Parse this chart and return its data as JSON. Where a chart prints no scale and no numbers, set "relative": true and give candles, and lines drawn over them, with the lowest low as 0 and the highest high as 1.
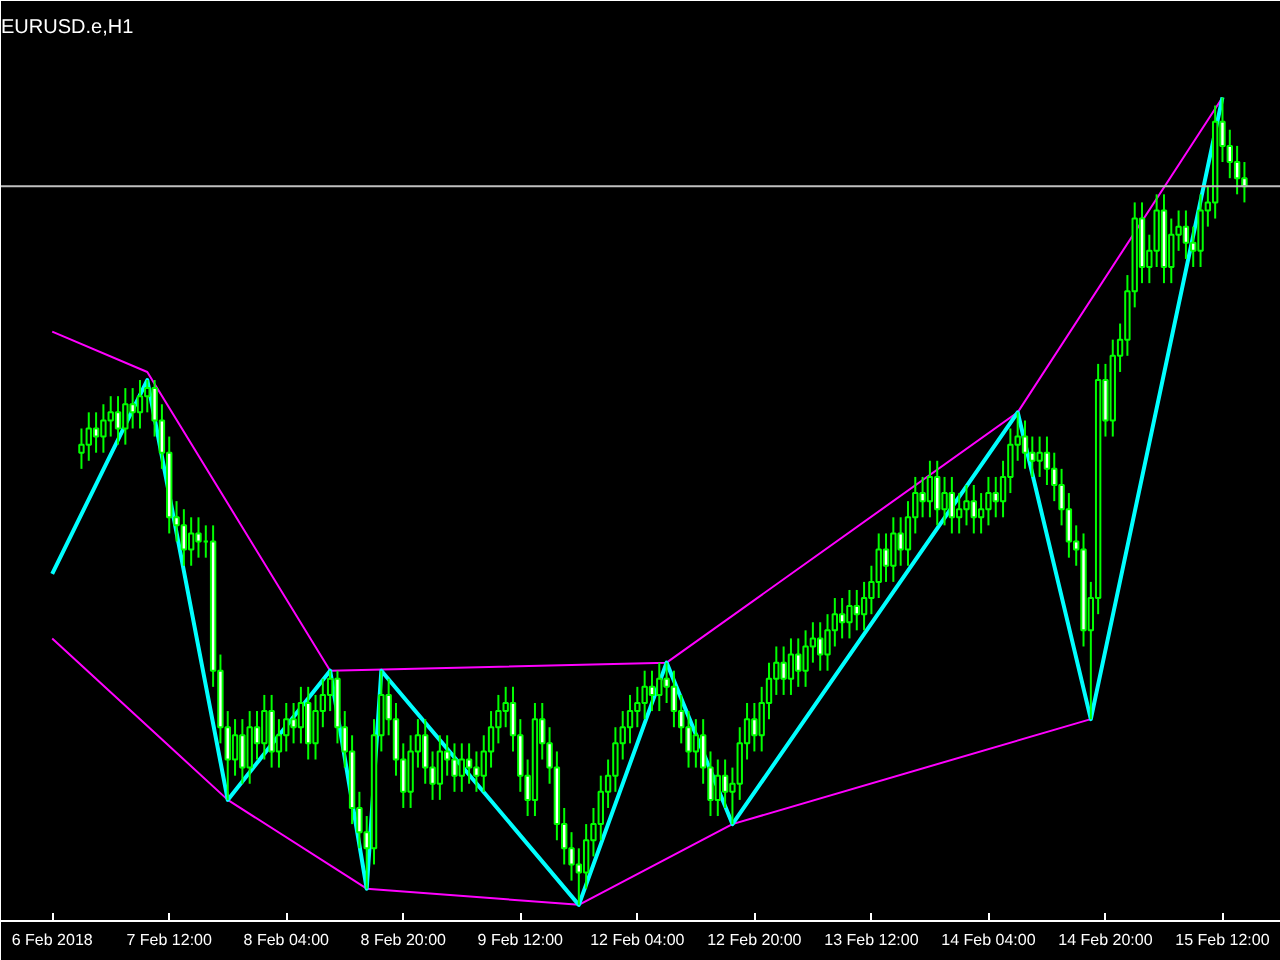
{
  "chart_data": {
    "type": "candlestick",
    "title": "EURUSD.e,H1",
    "relative": true,
    "color": "#00ff00",
    "categories": [
      "6 Feb 2018",
      null,
      null,
      null,
      null,
      null,
      null,
      null,
      null,
      null,
      null,
      null,
      null,
      null,
      null,
      null,
      "7 Feb 12:00",
      null,
      null,
      null,
      null,
      null,
      null,
      null,
      null,
      null,
      null,
      null,
      null,
      null,
      null,
      null,
      "8 Feb 04:00",
      null,
      null,
      null,
      null,
      null,
      null,
      null,
      null,
      null,
      null,
      null,
      null,
      null,
      null,
      null,
      "8 Feb 20:00",
      null,
      null,
      null,
      null,
      null,
      null,
      null,
      null,
      null,
      null,
      null,
      null,
      null,
      null,
      null,
      "9 Feb 12:00",
      null,
      null,
      null,
      null,
      null,
      null,
      null,
      null,
      null,
      null,
      null,
      null,
      null,
      null,
      null,
      "12 Feb 04:00",
      null,
      null,
      null,
      null,
      null,
      null,
      null,
      null,
      null,
      null,
      null,
      null,
      null,
      null,
      null,
      "12 Feb 20:00",
      null,
      null,
      null,
      null,
      null,
      null,
      null,
      null,
      null,
      null,
      null,
      null,
      null,
      null,
      null,
      "13 Feb 12:00",
      null,
      null,
      null,
      null,
      null,
      null,
      null,
      null,
      null,
      null,
      null,
      null,
      null,
      null,
      null,
      "14 Feb 04:00",
      null,
      null,
      null,
      null,
      null,
      null,
      null,
      null,
      null,
      null,
      null,
      null,
      null,
      null,
      null,
      "14 Feb 20:00",
      null,
      null,
      null,
      null,
      null,
      null,
      null,
      null,
      null,
      null,
      null,
      null,
      null,
      null,
      null,
      "15 Feb 12:00",
      null,
      null,
      null
    ],
    "ohlc": [
      null,
      null,
      null,
      null,
      [
        0.56,
        0.59,
        0.54,
        0.57
      ],
      [
        0.57,
        0.61,
        0.55,
        0.59
      ],
      [
        0.59,
        0.61,
        0.56,
        0.58
      ],
      [
        0.58,
        0.62,
        0.56,
        0.6
      ],
      [
        0.6,
        0.63,
        0.58,
        0.61
      ],
      [
        0.61,
        0.63,
        0.57,
        0.59
      ],
      [
        0.59,
        0.64,
        0.57,
        0.62
      ],
      [
        0.62,
        0.64,
        0.59,
        0.61
      ],
      [
        0.61,
        0.65,
        0.59,
        0.63
      ],
      [
        0.63,
        0.65,
        0.61,
        0.64
      ],
      [
        0.64,
        0.65,
        0.58,
        0.6
      ],
      [
        0.6,
        0.62,
        0.54,
        0.56
      ],
      [
        0.56,
        0.58,
        0.46,
        0.48
      ],
      [
        0.48,
        0.5,
        0.45,
        0.47
      ],
      [
        0.47,
        0.49,
        0.42,
        0.44
      ],
      [
        0.44,
        0.48,
        0.42,
        0.46
      ],
      [
        0.46,
        0.48,
        0.43,
        0.45
      ],
      [
        0.45,
        0.47,
        0.43,
        0.45
      ],
      [
        0.45,
        0.47,
        0.27,
        0.29
      ],
      [
        0.29,
        0.31,
        0.2,
        0.22
      ],
      [
        0.22,
        0.24,
        0.13,
        0.18
      ],
      [
        0.18,
        0.23,
        0.16,
        0.21
      ],
      [
        0.21,
        0.23,
        0.15,
        0.17
      ],
      [
        0.17,
        0.24,
        0.15,
        0.22
      ],
      [
        0.22,
        0.24,
        0.18,
        0.2
      ],
      [
        0.2,
        0.26,
        0.18,
        0.24
      ],
      [
        0.24,
        0.26,
        0.17,
        0.19
      ],
      [
        0.19,
        0.23,
        0.17,
        0.21
      ],
      [
        0.21,
        0.25,
        0.19,
        0.23
      ],
      [
        0.23,
        0.25,
        0.2,
        0.22
      ],
      [
        0.22,
        0.27,
        0.2,
        0.25
      ],
      [
        0.25,
        0.27,
        0.18,
        0.2
      ],
      [
        0.2,
        0.26,
        0.18,
        0.24
      ],
      [
        0.24,
        0.28,
        0.22,
        0.26
      ],
      [
        0.26,
        0.29,
        0.24,
        0.28
      ],
      [
        0.28,
        0.29,
        0.2,
        0.22
      ],
      [
        0.22,
        0.24,
        0.17,
        0.19
      ],
      [
        0.19,
        0.21,
        0.1,
        0.12
      ],
      [
        0.12,
        0.14,
        0.07,
        0.09
      ],
      [
        0.09,
        0.11,
        0.02,
        0.07
      ],
      [
        0.07,
        0.23,
        0.05,
        0.21
      ],
      [
        0.21,
        0.29,
        0.19,
        0.26
      ],
      [
        0.26,
        0.28,
        0.21,
        0.23
      ],
      [
        0.23,
        0.25,
        0.16,
        0.18
      ],
      [
        0.18,
        0.2,
        0.12,
        0.14
      ],
      [
        0.14,
        0.21,
        0.12,
        0.19
      ],
      [
        0.19,
        0.23,
        0.17,
        0.21
      ],
      [
        0.21,
        0.23,
        0.15,
        0.17
      ],
      [
        0.17,
        0.19,
        0.13,
        0.15
      ],
      [
        0.15,
        0.21,
        0.13,
        0.19
      ],
      [
        0.19,
        0.21,
        0.16,
        0.18
      ],
      [
        0.18,
        0.2,
        0.14,
        0.16
      ],
      [
        0.16,
        0.2,
        0.14,
        0.18
      ],
      [
        0.18,
        0.2,
        0.15,
        0.17
      ],
      [
        0.17,
        0.19,
        0.14,
        0.16
      ],
      [
        0.16,
        0.21,
        0.14,
        0.19
      ],
      [
        0.19,
        0.24,
        0.17,
        0.22
      ],
      [
        0.22,
        0.26,
        0.2,
        0.24
      ],
      [
        0.24,
        0.27,
        0.22,
        0.25
      ],
      [
        0.25,
        0.27,
        0.19,
        0.21
      ],
      [
        0.21,
        0.23,
        0.14,
        0.16
      ],
      [
        0.16,
        0.18,
        0.11,
        0.13
      ],
      [
        0.13,
        0.25,
        0.11,
        0.23
      ],
      [
        0.23,
        0.25,
        0.18,
        0.2
      ],
      [
        0.2,
        0.22,
        0.15,
        0.17
      ],
      [
        0.17,
        0.19,
        0.08,
        0.1
      ],
      [
        0.1,
        0.12,
        0.05,
        0.07
      ],
      [
        0.07,
        0.09,
        0.03,
        0.05
      ],
      [
        0.05,
        0.07,
        0.0,
        0.04
      ],
      [
        0.04,
        0.1,
        0.02,
        0.08
      ],
      [
        0.08,
        0.12,
        0.06,
        0.1
      ],
      [
        0.1,
        0.16,
        0.08,
        0.14
      ],
      [
        0.14,
        0.18,
        0.12,
        0.16
      ],
      [
        0.16,
        0.22,
        0.14,
        0.2
      ],
      [
        0.2,
        0.24,
        0.18,
        0.22
      ],
      [
        0.22,
        0.26,
        0.2,
        0.24
      ],
      [
        0.24,
        0.27,
        0.22,
        0.25
      ],
      [
        0.25,
        0.29,
        0.23,
        0.27
      ],
      [
        0.27,
        0.29,
        0.24,
        0.26
      ],
      [
        0.26,
        0.3,
        0.24,
        0.28
      ],
      [
        0.28,
        0.3,
        0.25,
        0.27
      ],
      [
        0.27,
        0.29,
        0.22,
        0.24
      ],
      [
        0.24,
        0.26,
        0.2,
        0.22
      ],
      [
        0.22,
        0.24,
        0.17,
        0.19
      ],
      [
        0.19,
        0.23,
        0.17,
        0.21
      ],
      [
        0.21,
        0.23,
        0.15,
        0.17
      ],
      [
        0.17,
        0.19,
        0.11,
        0.13
      ],
      [
        0.13,
        0.18,
        0.11,
        0.16
      ],
      [
        0.16,
        0.18,
        0.12,
        0.14
      ],
      [
        0.14,
        0.17,
        0.1,
        0.15
      ],
      [
        0.15,
        0.22,
        0.13,
        0.2
      ],
      [
        0.2,
        0.25,
        0.18,
        0.23
      ],
      [
        0.23,
        0.25,
        0.19,
        0.21
      ],
      [
        0.21,
        0.27,
        0.19,
        0.25
      ],
      [
        0.25,
        0.3,
        0.23,
        0.28
      ],
      [
        0.28,
        0.32,
        0.26,
        0.3
      ],
      [
        0.3,
        0.32,
        0.26,
        0.28
      ],
      [
        0.28,
        0.33,
        0.26,
        0.31
      ],
      [
        0.31,
        0.33,
        0.27,
        0.29
      ],
      [
        0.29,
        0.34,
        0.27,
        0.32
      ],
      [
        0.32,
        0.35,
        0.3,
        0.33
      ],
      [
        0.33,
        0.35,
        0.29,
        0.31
      ],
      [
        0.31,
        0.36,
        0.29,
        0.34
      ],
      [
        0.34,
        0.38,
        0.32,
        0.36
      ],
      [
        0.36,
        0.38,
        0.33,
        0.35
      ],
      [
        0.35,
        0.39,
        0.33,
        0.37
      ],
      [
        0.37,
        0.39,
        0.34,
        0.36
      ],
      [
        0.36,
        0.4,
        0.34,
        0.38
      ],
      [
        0.38,
        0.42,
        0.36,
        0.4
      ],
      [
        0.4,
        0.46,
        0.38,
        0.44
      ],
      [
        0.44,
        0.46,
        0.4,
        0.42
      ],
      [
        0.42,
        0.48,
        0.4,
        0.46
      ],
      [
        0.46,
        0.48,
        0.42,
        0.44
      ],
      [
        0.44,
        0.5,
        0.42,
        0.48
      ],
      [
        0.48,
        0.53,
        0.46,
        0.51
      ],
      [
        0.51,
        0.53,
        0.48,
        0.5
      ],
      [
        0.5,
        0.55,
        0.48,
        0.53
      ],
      [
        0.53,
        0.55,
        0.47,
        0.49
      ],
      [
        0.49,
        0.53,
        0.47,
        0.51
      ],
      [
        0.51,
        0.53,
        0.46,
        0.48
      ],
      [
        0.48,
        0.51,
        0.46,
        0.49
      ],
      [
        0.49,
        0.52,
        0.47,
        0.5
      ],
      [
        0.5,
        0.52,
        0.46,
        0.48
      ],
      [
        0.48,
        0.51,
        0.46,
        0.49
      ],
      [
        0.49,
        0.53,
        0.47,
        0.51
      ],
      [
        0.51,
        0.53,
        0.48,
        0.5
      ],
      [
        0.5,
        0.55,
        0.48,
        0.53
      ],
      [
        0.53,
        0.59,
        0.51,
        0.57
      ],
      [
        0.57,
        0.61,
        0.55,
        0.58
      ],
      [
        0.58,
        0.6,
        0.54,
        0.56
      ],
      [
        0.56,
        0.58,
        0.53,
        0.55
      ],
      [
        0.55,
        0.58,
        0.53,
        0.56
      ],
      [
        0.56,
        0.58,
        0.52,
        0.54
      ],
      [
        0.54,
        0.56,
        0.5,
        0.52
      ],
      [
        0.52,
        0.54,
        0.47,
        0.49
      ],
      [
        0.49,
        0.51,
        0.43,
        0.45
      ],
      [
        0.45,
        0.47,
        0.42,
        0.44
      ],
      [
        0.44,
        0.46,
        0.32,
        0.34
      ],
      [
        0.34,
        0.4,
        0.23,
        0.38
      ],
      [
        0.38,
        0.67,
        0.36,
        0.65
      ],
      [
        0.65,
        0.67,
        0.58,
        0.6
      ],
      [
        0.6,
        0.7,
        0.58,
        0.68
      ],
      [
        0.68,
        0.72,
        0.66,
        0.7
      ],
      [
        0.7,
        0.78,
        0.68,
        0.76
      ],
      [
        0.76,
        0.87,
        0.74,
        0.85
      ],
      [
        0.85,
        0.87,
        0.77,
        0.79
      ],
      [
        0.79,
        0.83,
        0.77,
        0.81
      ],
      [
        0.81,
        0.88,
        0.79,
        0.86
      ],
      [
        0.86,
        0.88,
        0.77,
        0.79
      ],
      [
        0.79,
        0.85,
        0.77,
        0.83
      ],
      [
        0.83,
        0.86,
        0.81,
        0.84
      ],
      [
        0.84,
        0.86,
        0.8,
        0.82
      ],
      [
        0.82,
        0.84,
        0.79,
        0.81
      ],
      [
        0.81,
        0.88,
        0.79,
        0.86
      ],
      [
        0.86,
        0.89,
        0.84,
        0.87
      ],
      [
        0.87,
        0.99,
        0.85,
        0.97
      ],
      [
        0.97,
        1.0,
        0.92,
        0.94
      ],
      [
        0.94,
        0.96,
        0.9,
        0.92
      ],
      [
        0.92,
        0.94,
        0.88,
        0.9
      ],
      [
        0.9,
        0.92,
        0.87,
        0.89
      ]
    ],
    "series": [
      {
        "type": "line",
        "color": "#ff00ff",
        "values": [
          0.71,
          null,
          null,
          null,
          null,
          null,
          null,
          null,
          null,
          null,
          null,
          null,
          null,
          0.66,
          null,
          null,
          null,
          null,
          null,
          null,
          null,
          null,
          null,
          null,
          null,
          null,
          null,
          null,
          null,
          null,
          null,
          null,
          null,
          null,
          null,
          null,
          null,
          null,
          0.29,
          null,
          null,
          null,
          null,
          null,
          null,
          null,
          null,
          null,
          null,
          null,
          null,
          null,
          null,
          null,
          null,
          null,
          null,
          null,
          null,
          null,
          null,
          null,
          null,
          null,
          null,
          null,
          null,
          null,
          null,
          null,
          null,
          null,
          null,
          null,
          null,
          null,
          null,
          null,
          null,
          null,
          null,
          null,
          null,
          null,
          0.3,
          null,
          null,
          null,
          null,
          null,
          null,
          null,
          null,
          null,
          null,
          null,
          null,
          null,
          null,
          null,
          null,
          null,
          null,
          null,
          null,
          null,
          null,
          null,
          null,
          null,
          null,
          null,
          null,
          null,
          null,
          null,
          null,
          null,
          null,
          null,
          null,
          null,
          null,
          null,
          null,
          null,
          null,
          null,
          null,
          null,
          null,
          null,
          0.61,
          null,
          null,
          null,
          null,
          null,
          null,
          null,
          null,
          null,
          null,
          null,
          null,
          null,
          null,
          null,
          null,
          null,
          null,
          null,
          null,
          null,
          null,
          null,
          null,
          null,
          null,
          null,
          1.0,
          null,
          null,
          null
        ]
      },
      {
        "type": "line",
        "color": "#ff00ff",
        "values": [
          0.33,
          null,
          null,
          null,
          null,
          null,
          null,
          null,
          null,
          null,
          null,
          null,
          null,
          null,
          null,
          null,
          null,
          null,
          null,
          null,
          null,
          null,
          null,
          null,
          0.13,
          null,
          null,
          null,
          null,
          null,
          null,
          null,
          null,
          null,
          null,
          null,
          null,
          null,
          null,
          null,
          null,
          null,
          null,
          0.02,
          null,
          null,
          null,
          null,
          null,
          null,
          null,
          null,
          null,
          null,
          null,
          null,
          null,
          null,
          null,
          null,
          null,
          null,
          null,
          null,
          null,
          null,
          null,
          null,
          null,
          null,
          null,
          null,
          0.0,
          null,
          null,
          null,
          null,
          null,
          null,
          null,
          null,
          null,
          null,
          null,
          null,
          null,
          null,
          null,
          null,
          null,
          null,
          null,
          null,
          0.1,
          null,
          null,
          null,
          null,
          null,
          null,
          null,
          null,
          null,
          null,
          null,
          null,
          null,
          null,
          null,
          null,
          null,
          null,
          null,
          null,
          null,
          null,
          null,
          null,
          null,
          null,
          null,
          null,
          null,
          null,
          null,
          null,
          null,
          null,
          null,
          null,
          null,
          null,
          null,
          null,
          null,
          null,
          null,
          null,
          null,
          null,
          null,
          null,
          0.23,
          null,
          null,
          null,
          null,
          null,
          null,
          null,
          null,
          null,
          null,
          null,
          null,
          null,
          null,
          null,
          null,
          null,
          null,
          null,
          null,
          null
        ]
      },
      {
        "type": "line",
        "color": "#00ffff",
        "values": [
          0.41,
          null,
          null,
          null,
          null,
          null,
          null,
          null,
          null,
          null,
          null,
          null,
          null,
          0.65,
          null,
          null,
          null,
          null,
          null,
          null,
          null,
          null,
          null,
          null,
          0.13,
          null,
          null,
          null,
          null,
          null,
          null,
          null,
          null,
          null,
          null,
          null,
          null,
          null,
          0.29,
          null,
          null,
          null,
          null,
          0.02,
          null,
          0.29,
          null,
          null,
          null,
          null,
          null,
          null,
          null,
          null,
          null,
          null,
          null,
          null,
          null,
          null,
          null,
          null,
          null,
          null,
          null,
          null,
          null,
          null,
          null,
          null,
          null,
          null,
          0.0,
          null,
          null,
          null,
          null,
          null,
          null,
          null,
          null,
          null,
          null,
          null,
          0.3,
          null,
          null,
          null,
          null,
          null,
          null,
          null,
          null,
          0.1,
          null,
          null,
          null,
          null,
          null,
          null,
          null,
          null,
          null,
          null,
          null,
          null,
          null,
          null,
          null,
          null,
          null,
          null,
          null,
          null,
          null,
          null,
          null,
          null,
          null,
          null,
          null,
          null,
          null,
          null,
          null,
          null,
          null,
          null,
          null,
          null,
          null,
          null,
          0.61,
          null,
          null,
          null,
          null,
          null,
          null,
          null,
          null,
          null,
          0.23,
          null,
          null,
          null,
          null,
          null,
          null,
          null,
          null,
          null,
          null,
          null,
          null,
          null,
          null,
          null,
          null,
          null,
          1.0,
          null,
          null,
          null
        ]
      }
    ],
    "ref_lines": [
      {
        "axis": "y",
        "value": 0.89,
        "color": "#c0c0c0"
      }
    ]
  }
}
